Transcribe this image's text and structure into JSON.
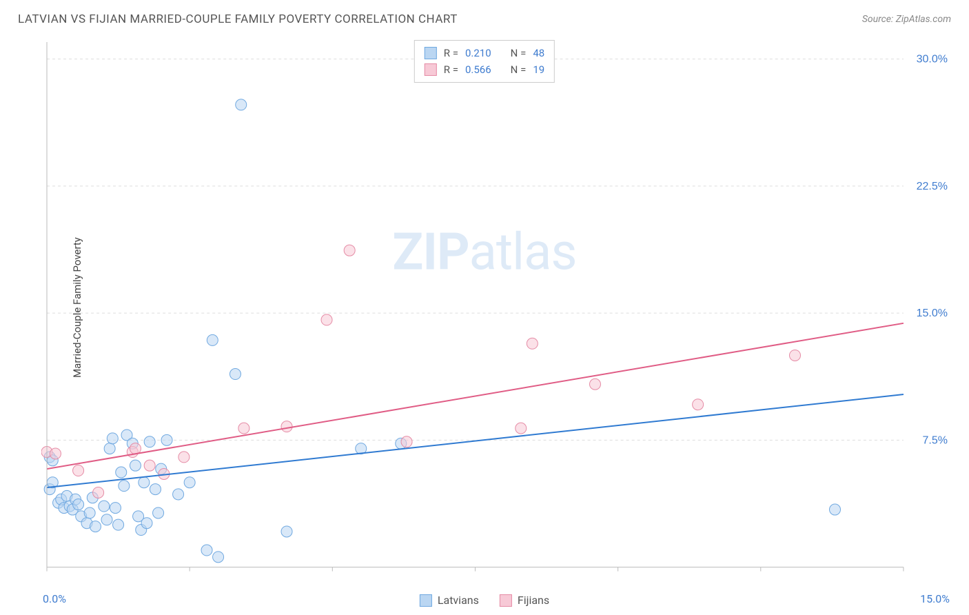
{
  "title": "LATVIAN VS FIJIAN MARRIED-COUPLE FAMILY POVERTY CORRELATION CHART",
  "source": "Source: ZipAtlas.com",
  "y_axis_label": "Married-Couple Family Poverty",
  "watermark_bold": "ZIP",
  "watermark_light": "atlas",
  "colors": {
    "text_gray": "#555555",
    "tick_blue": "#3f7ccf",
    "grid": "#dddddd",
    "axis": "#bbbbbb",
    "series_a_fill": "#bad6f2",
    "series_a_stroke": "#6fa8e0",
    "series_a_line": "#2f7ad1",
    "series_b_fill": "#f7c9d6",
    "series_b_stroke": "#e58ba5",
    "series_b_line": "#e05c85"
  },
  "chart": {
    "type": "scatter",
    "xlim": [
      0,
      15
    ],
    "ylim": [
      0,
      31
    ],
    "x_ticks": [
      0,
      2.5,
      5,
      7.5,
      10,
      12.5,
      15
    ],
    "x_tick_labels_shown": {
      "first": "0.0%",
      "last": "15.0%"
    },
    "y_ticks": [
      7.5,
      15.0,
      22.5,
      30.0
    ],
    "y_tick_labels": [
      "7.5%",
      "15.0%",
      "22.5%",
      "30.0%"
    ],
    "marker_radius": 8,
    "marker_opacity": 0.55,
    "line_width": 2,
    "background": "#ffffff"
  },
  "legend_top": [
    {
      "swatch_fill": "#bad6f2",
      "swatch_stroke": "#6fa8e0",
      "r_label": "R =",
      "r_value": "0.210",
      "n_label": "N =",
      "n_value": "48",
      "value_color": "#3f7ccf"
    },
    {
      "swatch_fill": "#f7c9d6",
      "swatch_stroke": "#e58ba5",
      "r_label": "R =",
      "r_value": "0.566",
      "n_label": "N =",
      "n_value": "19",
      "value_color": "#3f7ccf"
    }
  ],
  "legend_bottom": [
    {
      "swatch_fill": "#bad6f2",
      "swatch_stroke": "#6fa8e0",
      "label": "Latvians"
    },
    {
      "swatch_fill": "#f7c9d6",
      "swatch_stroke": "#e58ba5",
      "label": "Fijians"
    }
  ],
  "series": [
    {
      "name": "Latvians",
      "fill": "#bad6f2",
      "stroke": "#6fa8e0",
      "line_color": "#2f7ad1",
      "trend": {
        "x1": 0,
        "y1": 4.7,
        "x2": 15,
        "y2": 10.2
      },
      "points": [
        [
          0.05,
          6.5
        ],
        [
          0.05,
          4.6
        ],
        [
          0.1,
          5.0
        ],
        [
          0.1,
          6.3
        ],
        [
          0.2,
          3.8
        ],
        [
          0.25,
          4.0
        ],
        [
          0.3,
          3.5
        ],
        [
          0.35,
          4.2
        ],
        [
          0.4,
          3.6
        ],
        [
          0.45,
          3.4
        ],
        [
          0.5,
          4.0
        ],
        [
          0.55,
          3.7
        ],
        [
          0.6,
          3.0
        ],
        [
          0.7,
          2.6
        ],
        [
          0.75,
          3.2
        ],
        [
          0.8,
          4.1
        ],
        [
          0.85,
          2.4
        ],
        [
          1.0,
          3.6
        ],
        [
          1.05,
          2.8
        ],
        [
          1.1,
          7.0
        ],
        [
          1.15,
          7.6
        ],
        [
          1.2,
          3.5
        ],
        [
          1.25,
          2.5
        ],
        [
          1.3,
          5.6
        ],
        [
          1.35,
          4.8
        ],
        [
          1.4,
          7.8
        ],
        [
          1.5,
          7.3
        ],
        [
          1.55,
          6.0
        ],
        [
          1.6,
          3.0
        ],
        [
          1.65,
          2.2
        ],
        [
          1.7,
          5.0
        ],
        [
          1.75,
          2.6
        ],
        [
          1.8,
          7.4
        ],
        [
          1.9,
          4.6
        ],
        [
          1.95,
          3.2
        ],
        [
          2.0,
          5.8
        ],
        [
          2.1,
          7.5
        ],
        [
          2.3,
          4.3
        ],
        [
          2.5,
          5.0
        ],
        [
          2.8,
          1.0
        ],
        [
          2.9,
          13.4
        ],
        [
          3.0,
          0.6
        ],
        [
          3.3,
          11.4
        ],
        [
          3.4,
          27.3
        ],
        [
          4.2,
          2.1
        ],
        [
          5.5,
          7.0
        ],
        [
          6.2,
          7.3
        ],
        [
          13.8,
          3.4
        ]
      ]
    },
    {
      "name": "Fijians",
      "fill": "#f7c9d6",
      "stroke": "#e58ba5",
      "line_color": "#e05c85",
      "trend": {
        "x1": 0,
        "y1": 5.8,
        "x2": 15,
        "y2": 14.4
      },
      "points": [
        [
          0.0,
          6.8
        ],
        [
          0.15,
          6.7
        ],
        [
          0.55,
          5.7
        ],
        [
          0.9,
          4.4
        ],
        [
          1.5,
          6.8
        ],
        [
          1.55,
          7.0
        ],
        [
          1.8,
          6.0
        ],
        [
          2.05,
          5.5
        ],
        [
          2.4,
          6.5
        ],
        [
          3.45,
          8.2
        ],
        [
          4.2,
          8.3
        ],
        [
          4.9,
          14.6
        ],
        [
          5.3,
          18.7
        ],
        [
          6.3,
          7.4
        ],
        [
          8.3,
          8.2
        ],
        [
          8.5,
          13.2
        ],
        [
          9.6,
          10.8
        ],
        [
          11.4,
          9.6
        ],
        [
          13.1,
          12.5
        ]
      ]
    }
  ]
}
